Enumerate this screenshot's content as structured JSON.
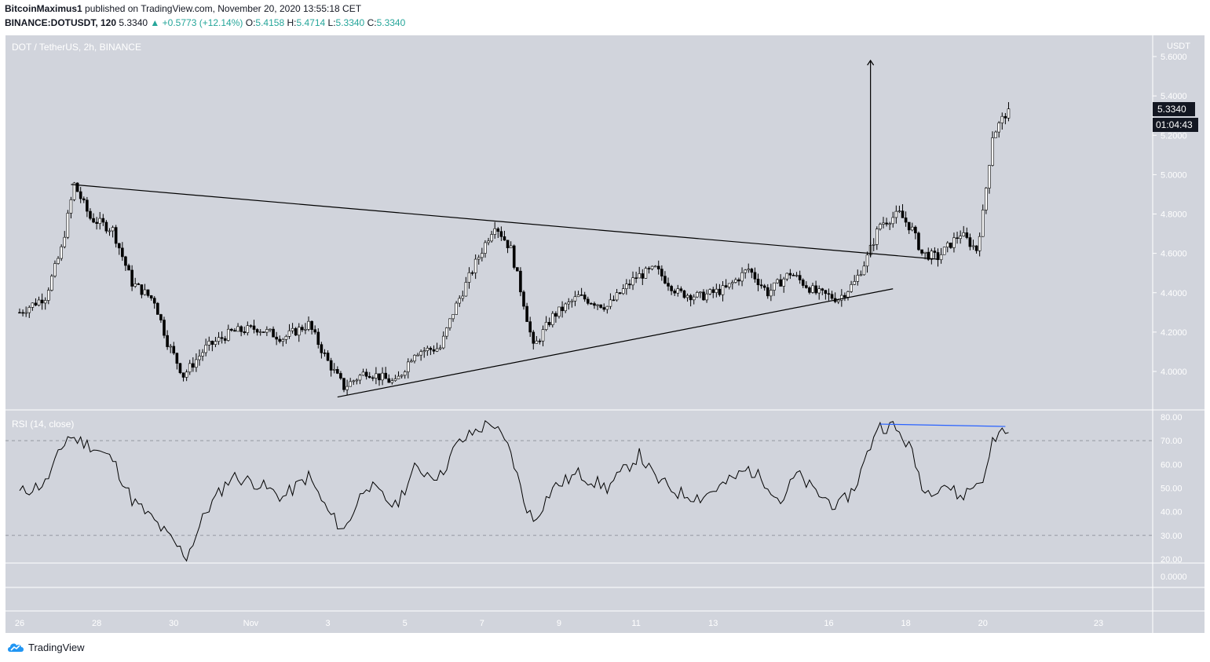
{
  "header": {
    "author": "BitcoinMaximus1",
    "published_text": "published on TradingView.com, November 20, 2020 13:55:18 CET",
    "symbol": "BINANCE:DOTUSDT, 120",
    "last": "5.3340",
    "change": "+0.5773 (+12.14%)",
    "open_label": "O:",
    "open": "5.4158",
    "high_label": "H:",
    "high": "5.4714",
    "low_label": "L:",
    "low": "5.3340",
    "close_label": "C:",
    "close": "5.3340"
  },
  "footer": {
    "brand": "TradingView"
  },
  "colors": {
    "bg": "#d1d4dc",
    "up": "#ffffff",
    "down": "#000000",
    "rsi_line": "#000000",
    "divergence": "#2962ff",
    "accent": "#26a69a"
  },
  "chart_data": [
    {
      "type": "candlestick",
      "title": "DOT / TetherUS, 2h, BINANCE",
      "ylabel": "USDT",
      "ylim": [
        3.85,
        5.65
      ],
      "y_ticks": [
        "5.6000",
        "5.4000",
        "5.2000",
        "5.0000",
        "4.8000",
        "4.6000",
        "4.4000",
        "4.2000",
        "4.0000"
      ],
      "x_ticks": [
        "26",
        "28",
        "30",
        "Nov",
        "3",
        "5",
        "7",
        "9",
        "11",
        "13",
        "16",
        "18",
        "20",
        "23"
      ],
      "price_tag": "5.3340",
      "countdown": "01:04:43",
      "anchors": [
        [
          "2020-10-26 00:00",
          4.3
        ],
        [
          "2020-10-26 16:00",
          4.38
        ],
        [
          "2020-10-27 02:00",
          4.62
        ],
        [
          "2020-10-27 10:00",
          4.95
        ],
        [
          "2020-10-27 20:00",
          4.78
        ],
        [
          "2020-10-28 10:00",
          4.72
        ],
        [
          "2020-10-28 22:00",
          4.45
        ],
        [
          "2020-10-29 12:00",
          4.36
        ],
        [
          "2020-10-29 20:00",
          4.15
        ],
        [
          "2020-10-30 06:00",
          3.98
        ],
        [
          "2020-10-30 20:00",
          4.12
        ],
        [
          "2020-10-31 12:00",
          4.2
        ],
        [
          "2020-11-01 04:00",
          4.22
        ],
        [
          "2020-11-01 20:00",
          4.17
        ],
        [
          "2020-11-02 12:00",
          4.24
        ],
        [
          "2020-11-03 00:00",
          4.05
        ],
        [
          "2020-11-03 10:00",
          3.92
        ],
        [
          "2020-11-04 00:00",
          4.0
        ],
        [
          "2020-11-04 18:00",
          3.94
        ],
        [
          "2020-11-05 06:00",
          4.1
        ],
        [
          "2020-11-05 22:00",
          4.12
        ],
        [
          "2020-11-06 06:00",
          4.3
        ],
        [
          "2020-11-06 20:00",
          4.55
        ],
        [
          "2020-11-07 08:00",
          4.75
        ],
        [
          "2020-11-07 18:00",
          4.62
        ],
        [
          "2020-11-08 02:00",
          4.35
        ],
        [
          "2020-11-08 08:00",
          4.12
        ],
        [
          "2020-11-08 20:00",
          4.28
        ],
        [
          "2020-11-09 12:00",
          4.38
        ],
        [
          "2020-11-10 06:00",
          4.33
        ],
        [
          "2020-11-11 00:00",
          4.48
        ],
        [
          "2020-11-11 12:00",
          4.52
        ],
        [
          "2020-11-12 02:00",
          4.4
        ],
        [
          "2020-11-12 16:00",
          4.38
        ],
        [
          "2020-11-13 08:00",
          4.42
        ],
        [
          "2020-11-13 22:00",
          4.52
        ],
        [
          "2020-11-14 10:00",
          4.4
        ],
        [
          "2020-11-15 00:00",
          4.5
        ],
        [
          "2020-11-15 16:00",
          4.4
        ],
        [
          "2020-11-16 06:00",
          4.37
        ],
        [
          "2020-11-16 16:00",
          4.45
        ],
        [
          "2020-11-17 00:00",
          4.58
        ],
        [
          "2020-11-17 08:00",
          4.75
        ],
        [
          "2020-11-17 20:00",
          4.8
        ],
        [
          "2020-11-18 04:00",
          4.72
        ],
        [
          "2020-11-18 10:00",
          4.6
        ],
        [
          "2020-11-18 20:00",
          4.58
        ],
        [
          "2020-11-19 10:00",
          4.7
        ],
        [
          "2020-11-19 20:00",
          4.62
        ],
        [
          "2020-11-20 00:00",
          4.8
        ],
        [
          "2020-11-20 06:00",
          5.2
        ],
        [
          "2020-11-20 16:00",
          5.334
        ]
      ],
      "trendlines": [
        {
          "from": [
            "2020-10-27 08:00",
            4.95
          ],
          "to": [
            "2020-11-18 20:00",
            4.57
          ]
        },
        {
          "from": [
            "2020-11-03 06:00",
            3.87
          ],
          "to": [
            "2020-11-17 16:00",
            4.42
          ]
        }
      ],
      "arrow": {
        "x": "2020-11-17 02:00",
        "from": 4.58,
        "to": 5.58
      }
    },
    {
      "type": "line",
      "title": "RSI (14, close)",
      "ylim": [
        0,
        80
      ],
      "y_ticks": [
        "80.00",
        "70.00",
        "60.00",
        "50.00",
        "40.00",
        "30.00",
        "20.00",
        "0.0000"
      ],
      "bands": [
        30,
        70
      ],
      "anchors": [
        [
          "2020-10-26 00:00",
          48
        ],
        [
          "2020-10-26 16:00",
          52
        ],
        [
          "2020-10-27 06:00",
          72
        ],
        [
          "2020-10-27 20:00",
          68
        ],
        [
          "2020-10-28 10:00",
          62
        ],
        [
          "2020-10-28 22:00",
          45
        ],
        [
          "2020-10-29 12:00",
          36
        ],
        [
          "2020-10-29 20:00",
          30
        ],
        [
          "2020-10-30 08:00",
          21
        ],
        [
          "2020-10-30 20:00",
          40
        ],
        [
          "2020-10-31 12:00",
          55
        ],
        [
          "2020-11-01 04:00",
          52
        ],
        [
          "2020-11-01 20:00",
          46
        ],
        [
          "2020-11-02 12:00",
          55
        ],
        [
          "2020-11-03 00:00",
          40
        ],
        [
          "2020-11-03 10:00",
          32
        ],
        [
          "2020-11-04 00:00",
          52
        ],
        [
          "2020-11-04 18:00",
          42
        ],
        [
          "2020-11-05 06:00",
          58
        ],
        [
          "2020-11-05 22:00",
          55
        ],
        [
          "2020-11-06 08:00",
          68
        ],
        [
          "2020-11-06 20:00",
          74
        ],
        [
          "2020-11-07 06:00",
          78
        ],
        [
          "2020-11-07 18:00",
          65
        ],
        [
          "2020-11-08 02:00",
          45
        ],
        [
          "2020-11-08 08:00",
          36
        ],
        [
          "2020-11-08 20:00",
          50
        ],
        [
          "2020-11-09 12:00",
          56
        ],
        [
          "2020-11-10 06:00",
          50
        ],
        [
          "2020-11-11 02:00",
          64
        ],
        [
          "2020-11-11 12:00",
          54
        ],
        [
          "2020-11-12 02:00",
          48
        ],
        [
          "2020-11-12 16:00",
          46
        ],
        [
          "2020-11-13 08:00",
          52
        ],
        [
          "2020-11-13 22:00",
          58
        ],
        [
          "2020-11-14 10:00",
          52
        ],
        [
          "2020-11-14 18:00",
          44
        ],
        [
          "2020-11-15 04:00",
          56
        ],
        [
          "2020-11-15 16:00",
          48
        ],
        [
          "2020-11-16 06:00",
          42
        ],
        [
          "2020-11-16 16:00",
          50
        ],
        [
          "2020-11-17 00:00",
          64
        ],
        [
          "2020-11-17 06:00",
          76
        ],
        [
          "2020-11-17 16:00",
          76
        ],
        [
          "2020-11-18 02:00",
          68
        ],
        [
          "2020-11-18 12:00",
          48
        ],
        [
          "2020-11-19 00:00",
          52
        ],
        [
          "2020-11-19 10:00",
          46
        ],
        [
          "2020-11-19 20:00",
          52
        ],
        [
          "2020-11-20 02:00",
          56
        ],
        [
          "2020-11-20 06:00",
          70
        ],
        [
          "2020-11-20 14:00",
          76
        ],
        [
          "2020-11-20 16:00",
          71
        ]
      ],
      "divergence_line": {
        "from": [
          "2020-11-17 08:00",
          77
        ],
        "to": [
          "2020-11-20 14:00",
          76
        ]
      }
    }
  ]
}
